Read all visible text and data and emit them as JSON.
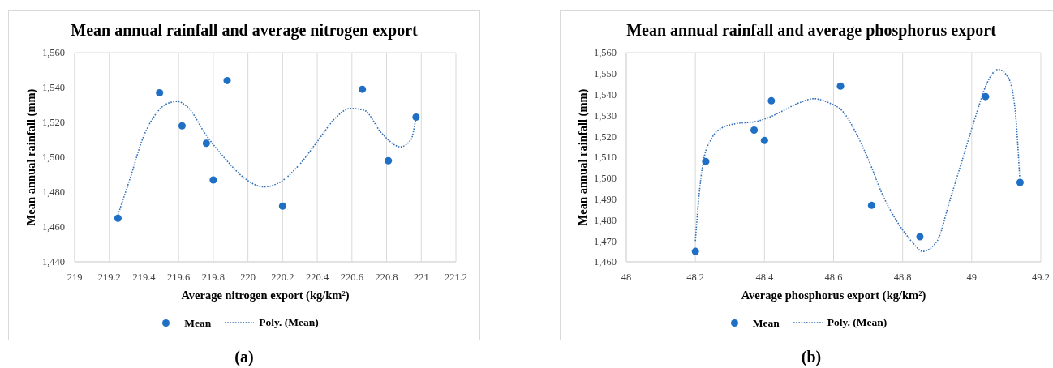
{
  "chart_data": [
    {
      "type": "scatter",
      "title": "Mean annual rainfall and average nitrogen export",
      "xlabel": "Average nitrogen export (kg/km²)",
      "ylabel": "Mean annual rainfall (mm)",
      "annotations": [
        "(a)"
      ],
      "xlim": [
        219,
        221.2
      ],
      "xticks": [
        219,
        219.2,
        219.4,
        219.6,
        219.8,
        220,
        220.2,
        220.4,
        220.6,
        220.8,
        221,
        221.2
      ],
      "ylim": [
        1440,
        1560
      ],
      "yticks": [
        {
          "value": 1440,
          "label": "1,440"
        },
        {
          "value": 1460,
          "label": "1,460"
        },
        {
          "value": 1480,
          "label": "1,480"
        },
        {
          "value": 1500,
          "label": "1,500"
        },
        {
          "value": 1520,
          "label": "1,520"
        },
        {
          "value": 1540,
          "label": "1,540"
        },
        {
          "value": 1560,
          "label": "1,560"
        }
      ],
      "grid": true,
      "legend": "bottom",
      "series": [
        {
          "name": "Mean",
          "type": "scatter",
          "marker": "circle",
          "color": "#1f6fc4",
          "x": [
            219.25,
            219.49,
            219.62,
            219.76,
            219.8,
            219.88,
            220.2,
            220.66,
            220.81,
            220.97
          ],
          "values": [
            1465,
            1537,
            1518,
            1508,
            1487,
            1544,
            1472,
            1539,
            1498,
            1523
          ]
        },
        {
          "name": "Poly. (Mean)",
          "type": "line",
          "marker": "none",
          "line_style": "dotted",
          "color": "#3370b8",
          "x": [
            219.25,
            219.33,
            219.39,
            219.47,
            219.52,
            219.59,
            219.66,
            219.75,
            219.87,
            219.98,
            220.09,
            220.19,
            220.29,
            220.4,
            220.5,
            220.59,
            220.67,
            220.77,
            220.88,
            220.94,
            220.97
          ],
          "values": [
            1467,
            1491,
            1510,
            1525,
            1530,
            1532,
            1528,
            1514,
            1499,
            1488,
            1483,
            1486,
            1495,
            1509,
            1522,
            1528,
            1527,
            1514,
            1506,
            1510,
            1523
          ]
        }
      ]
    },
    {
      "type": "scatter",
      "title": "Mean annual rainfall and average phosphorus export",
      "xlabel": "Average phosphorus export (kg/km²)",
      "ylabel": "Mean annual rainfall (mm)",
      "annotations": [
        "(b)"
      ],
      "xlim": [
        48,
        49.2
      ],
      "xticks": [
        48,
        48.2,
        48.4,
        48.6,
        48.8,
        49,
        49.2
      ],
      "ylim": [
        1460,
        1560
      ],
      "yticks": [
        {
          "value": 1460,
          "label": "1,460"
        },
        {
          "value": 1470,
          "label": "1,470"
        },
        {
          "value": 1480,
          "label": "1,480"
        },
        {
          "value": 1490,
          "label": "1,490"
        },
        {
          "value": 1500,
          "label": "1,500"
        },
        {
          "value": 1510,
          "label": "1,510"
        },
        {
          "value": 1520,
          "label": "1,520"
        },
        {
          "value": 1530,
          "label": "1,530"
        },
        {
          "value": 1540,
          "label": "1,540"
        },
        {
          "value": 1550,
          "label": "1,550"
        },
        {
          "value": 1560,
          "label": "1,560"
        }
      ],
      "grid": true,
      "legend": "bottom",
      "series": [
        {
          "name": "Mean",
          "type": "scatter",
          "marker": "circle",
          "color": "#1f6fc4",
          "x": [
            48.2,
            48.23,
            48.37,
            48.4,
            48.42,
            48.62,
            48.71,
            48.85,
            49.04,
            49.14
          ],
          "values": [
            1465,
            1508,
            1523,
            1518,
            1537,
            1544,
            1487,
            1472,
            1539,
            1498
          ]
        },
        {
          "name": "Poly. (Mean)",
          "type": "line",
          "marker": "none",
          "line_style": "dotted",
          "color": "#3370b8",
          "x": [
            48.2,
            48.209,
            48.223,
            48.247,
            48.276,
            48.315,
            48.373,
            48.412,
            48.451,
            48.5,
            48.543,
            48.587,
            48.626,
            48.664,
            48.703,
            48.742,
            48.781,
            48.81,
            48.83,
            48.858,
            48.9,
            48.936,
            48.975,
            49.014,
            49.043,
            49.077,
            49.106,
            49.126,
            49.139
          ],
          "values": [
            1470,
            1489,
            1508,
            1519,
            1524,
            1526,
            1527,
            1529,
            1532,
            1536,
            1538,
            1536,
            1532,
            1522,
            1508,
            1492,
            1480,
            1473,
            1469,
            1465,
            1470,
            1489,
            1510,
            1531,
            1545,
            1552,
            1548,
            1532,
            1500
          ]
        }
      ]
    }
  ]
}
